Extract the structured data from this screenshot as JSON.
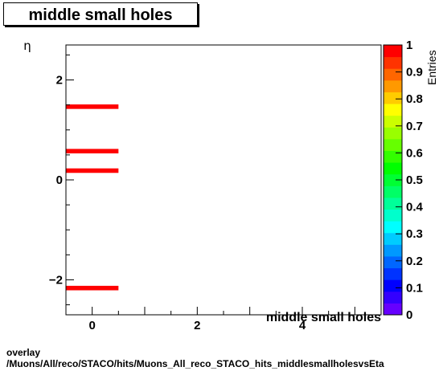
{
  "title": "middle small holes",
  "footer": {
    "line1": "overlay",
    "line2": "/Muons/All/reco/STACO/hits/Muons_All_reco_STACO_hits_middlesmallholesvsEta"
  },
  "chart_data": {
    "type": "heatmap",
    "title": "middle small holes",
    "xlabel": "middle small holes",
    "ylabel": "η",
    "xlim": [
      -0.5,
      5.5
    ],
    "ylim": [
      -2.7,
      2.7
    ],
    "xticks": [
      0,
      2,
      4
    ],
    "yticks": [
      -2,
      0,
      2
    ],
    "z_label": "Entries",
    "zlim": [
      0,
      1
    ],
    "zticks": [
      "0",
      "0.1",
      "0.2",
      "0.3",
      "0.4",
      "0.5",
      "0.6",
      "0.7",
      "0.8",
      "0.9",
      "1"
    ],
    "cells": [
      {
        "x_low": -0.5,
        "x_high": 0.5,
        "y_low": 1.42,
        "y_high": 1.51,
        "value": 1
      },
      {
        "x_low": -0.5,
        "x_high": 0.5,
        "y_low": 0.53,
        "y_high": 0.62,
        "value": 1
      },
      {
        "x_low": -0.5,
        "x_high": 0.5,
        "y_low": 0.14,
        "y_high": 0.23,
        "value": 1
      },
      {
        "x_low": -0.5,
        "x_high": 0.5,
        "y_low": -2.21,
        "y_high": -2.12,
        "value": 1
      }
    ],
    "palette": [
      "#6600ff",
      "#3300ff",
      "#0000ff",
      "#0033ff",
      "#0066ff",
      "#0099ff",
      "#00ccff",
      "#00ffff",
      "#00ffcc",
      "#00ff99",
      "#00ff66",
      "#00ff33",
      "#00ff00",
      "#33ff00",
      "#66ff00",
      "#99ff00",
      "#ccff00",
      "#ffff00",
      "#ffcc00",
      "#ff9900",
      "#ff6600",
      "#ff3300",
      "#ff0000"
    ],
    "grid": false
  }
}
